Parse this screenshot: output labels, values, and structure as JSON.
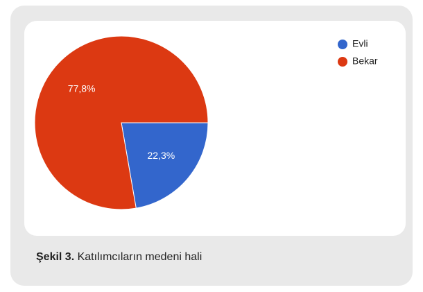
{
  "chart_data": {
    "type": "pie",
    "categories": [
      "Evli",
      "Bekar"
    ],
    "values": [
      22.3,
      77.8
    ],
    "value_labels": [
      "22,3%",
      "77,8%"
    ],
    "colors": [
      "#3366cc",
      "#dc3912"
    ],
    "legend": "top-right"
  },
  "caption": {
    "label": "Şekil 3.",
    "text": "Katılımcıların medeni hali"
  }
}
